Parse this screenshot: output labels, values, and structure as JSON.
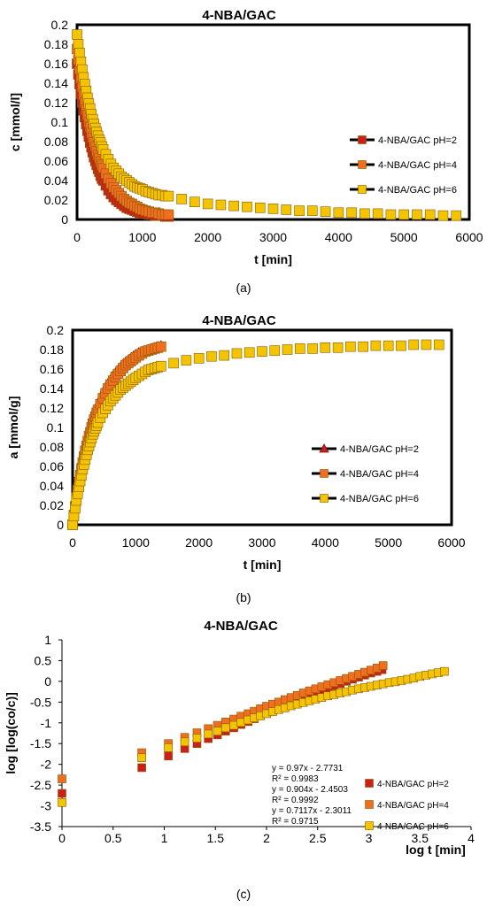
{
  "colors": {
    "pH2": "#cc1f1a",
    "pH4": "#ef6e1f",
    "pH6": "#f5c400",
    "marker_edge": "#8a5a00",
    "frame": "#000000"
  },
  "chart_data": [
    {
      "panel": "(a)",
      "type": "scatter",
      "title": "4-NBA/GAC",
      "xlabel": "t [min]",
      "ylabel": "c [mmol/l]",
      "xlim": [
        0,
        6000
      ],
      "ylim": [
        0,
        0.2
      ],
      "xticks": [
        "0",
        "1000",
        "2000",
        "3000",
        "4000",
        "5000",
        "6000"
      ],
      "yticks": [
        "0",
        "0.02",
        "0.04",
        "0.06",
        "0.08",
        "0.1",
        "0.12",
        "0.14",
        "0.16",
        "0.18",
        "0.2"
      ],
      "legend_position": "right",
      "legend_marker": "square",
      "series": [
        {
          "name": "4-NBA/GAC pH=2",
          "color_key": "pH2",
          "x": [
            0,
            20,
            40,
            60,
            80,
            100,
            120,
            140,
            160,
            180,
            200,
            220,
            240,
            260,
            280,
            300,
            320,
            340,
            360,
            380,
            400,
            440,
            480,
            520,
            560,
            600,
            640,
            680,
            720,
            760,
            800,
            840,
            880,
            920,
            960,
            1000,
            1050,
            1100,
            1150,
            1200,
            1250,
            1300,
            1350,
            1400
          ],
          "y": [
            0.16,
            0.149,
            0.139,
            0.129,
            0.12,
            0.112,
            0.105,
            0.098,
            0.091,
            0.085,
            0.079,
            0.074,
            0.069,
            0.064,
            0.06,
            0.056,
            0.052,
            0.049,
            0.045,
            0.042,
            0.04,
            0.035,
            0.03,
            0.026,
            0.023,
            0.02,
            0.018,
            0.016,
            0.014,
            0.012,
            0.011,
            0.01,
            0.009,
            0.008,
            0.007,
            0.006,
            0.006,
            0.005,
            0.005,
            0.004,
            0.004,
            0.004,
            0.003,
            0.003
          ]
        },
        {
          "name": "4-NBA/GAC pH=4",
          "color_key": "pH4",
          "x": [
            0,
            20,
            40,
            60,
            80,
            100,
            120,
            140,
            160,
            180,
            200,
            220,
            240,
            260,
            280,
            300,
            320,
            340,
            360,
            380,
            400,
            440,
            480,
            520,
            560,
            600,
            640,
            680,
            720,
            760,
            800,
            840,
            880,
            920,
            960,
            1000,
            1050,
            1100,
            1150,
            1200,
            1250,
            1300,
            1350,
            1400
          ],
          "y": [
            0.175,
            0.164,
            0.154,
            0.145,
            0.136,
            0.128,
            0.12,
            0.113,
            0.107,
            0.1,
            0.095,
            0.089,
            0.084,
            0.079,
            0.075,
            0.07,
            0.066,
            0.063,
            0.059,
            0.056,
            0.053,
            0.047,
            0.042,
            0.037,
            0.033,
            0.03,
            0.027,
            0.024,
            0.021,
            0.019,
            0.017,
            0.016,
            0.014,
            0.013,
            0.011,
            0.01,
            0.009,
            0.008,
            0.007,
            0.007,
            0.006,
            0.005,
            0.005,
            0.005
          ]
        },
        {
          "name": "4-NBA/GAC pH=6",
          "color_key": "pH6",
          "x": [
            0,
            20,
            40,
            60,
            80,
            100,
            120,
            140,
            160,
            180,
            200,
            220,
            240,
            260,
            280,
            300,
            320,
            340,
            360,
            380,
            400,
            440,
            480,
            520,
            560,
            600,
            640,
            680,
            720,
            760,
            800,
            840,
            880,
            920,
            960,
            1000,
            1050,
            1100,
            1150,
            1200,
            1250,
            1300,
            1350,
            1400,
            1600,
            1800,
            2000,
            2200,
            2400,
            2600,
            2800,
            3000,
            3200,
            3400,
            3600,
            3800,
            4000,
            4200,
            4400,
            4600,
            4800,
            5000,
            5200,
            5400,
            5600,
            5800
          ],
          "y": [
            0.19,
            0.18,
            0.171,
            0.162,
            0.154,
            0.146,
            0.139,
            0.132,
            0.125,
            0.119,
            0.114,
            0.108,
            0.103,
            0.098,
            0.094,
            0.09,
            0.086,
            0.082,
            0.079,
            0.075,
            0.072,
            0.067,
            0.062,
            0.057,
            0.053,
            0.05,
            0.047,
            0.044,
            0.042,
            0.04,
            0.038,
            0.036,
            0.034,
            0.033,
            0.032,
            0.031,
            0.029,
            0.028,
            0.027,
            0.026,
            0.025,
            0.025,
            0.024,
            0.024,
            0.021,
            0.018,
            0.016,
            0.015,
            0.014,
            0.013,
            0.012,
            0.011,
            0.01,
            0.009,
            0.009,
            0.008,
            0.007,
            0.007,
            0.006,
            0.006,
            0.005,
            0.005,
            0.005,
            0.005,
            0.004,
            0.004
          ]
        }
      ]
    },
    {
      "panel": "(b)",
      "type": "scatter",
      "title": "4-NBA/GAC",
      "xlabel": "t [min]",
      "ylabel": "a [mmol/g]",
      "xlim": [
        0,
        6000
      ],
      "ylim": [
        0,
        0.2
      ],
      "xticks": [
        "0",
        "1000",
        "2000",
        "3000",
        "4000",
        "5000",
        "6000"
      ],
      "yticks": [
        "0",
        "0.02",
        "0.04",
        "0.06",
        "0.08",
        "0.1",
        "0.12",
        "0.14",
        "0.16",
        "0.18",
        "0.2"
      ],
      "legend_position": "right",
      "legend_marker": [
        "triangle",
        "square",
        "square"
      ],
      "series": [
        {
          "name": "4-NBA/GAC pH=2",
          "color_key": "pH2",
          "marker": "triangle",
          "x": [
            0,
            20,
            40,
            60,
            80,
            100,
            120,
            140,
            160,
            180,
            200,
            220,
            240,
            260,
            280,
            300,
            320,
            340,
            360,
            380,
            400,
            440,
            480,
            520,
            560,
            600,
            640,
            680,
            720,
            760,
            800,
            840,
            880,
            920,
            960,
            1000,
            1050,
            1100,
            1150,
            1200,
            1250,
            1300,
            1350,
            1400
          ],
          "y": [
            0,
            0.011,
            0.021,
            0.031,
            0.04,
            0.048,
            0.056,
            0.063,
            0.07,
            0.076,
            0.082,
            0.088,
            0.093,
            0.098,
            0.103,
            0.107,
            0.111,
            0.115,
            0.119,
            0.122,
            0.125,
            0.131,
            0.137,
            0.142,
            0.146,
            0.15,
            0.154,
            0.157,
            0.16,
            0.163,
            0.166,
            0.168,
            0.17,
            0.172,
            0.174,
            0.176,
            0.178,
            0.179,
            0.18,
            0.181,
            0.182,
            0.183,
            0.184,
            0.185
          ]
        },
        {
          "name": "4-NBA/GAC pH=4",
          "color_key": "pH4",
          "marker": "square",
          "x": [
            0,
            20,
            40,
            60,
            80,
            100,
            120,
            140,
            160,
            180,
            200,
            220,
            240,
            260,
            280,
            300,
            320,
            340,
            360,
            380,
            400,
            440,
            480,
            520,
            560,
            600,
            640,
            680,
            720,
            760,
            800,
            840,
            880,
            920,
            960,
            1000,
            1050,
            1100,
            1150,
            1200,
            1250,
            1300,
            1350,
            1400
          ],
          "y": [
            0,
            0.01,
            0.019,
            0.028,
            0.036,
            0.044,
            0.051,
            0.058,
            0.064,
            0.07,
            0.076,
            0.081,
            0.086,
            0.091,
            0.095,
            0.1,
            0.104,
            0.108,
            0.111,
            0.115,
            0.118,
            0.124,
            0.13,
            0.135,
            0.14,
            0.144,
            0.148,
            0.152,
            0.155,
            0.158,
            0.161,
            0.164,
            0.166,
            0.168,
            0.17,
            0.172,
            0.174,
            0.176,
            0.178,
            0.179,
            0.18,
            0.181,
            0.182,
            0.183
          ]
        },
        {
          "name": "4-NBA/GAC pH=6",
          "color_key": "pH6",
          "marker": "square",
          "x": [
            0,
            20,
            40,
            60,
            80,
            100,
            120,
            140,
            160,
            180,
            200,
            220,
            240,
            260,
            280,
            300,
            320,
            340,
            360,
            380,
            400,
            440,
            480,
            520,
            560,
            600,
            640,
            680,
            720,
            760,
            800,
            840,
            880,
            920,
            960,
            1000,
            1050,
            1100,
            1150,
            1200,
            1250,
            1300,
            1350,
            1400,
            1600,
            1800,
            2000,
            2200,
            2400,
            2600,
            2800,
            3000,
            3200,
            3400,
            3600,
            3800,
            4000,
            4200,
            4400,
            4600,
            4800,
            5000,
            5200,
            5400,
            5600,
            5800
          ],
          "y": [
            0,
            0.009,
            0.017,
            0.025,
            0.032,
            0.039,
            0.045,
            0.051,
            0.057,
            0.062,
            0.067,
            0.072,
            0.077,
            0.081,
            0.085,
            0.089,
            0.093,
            0.096,
            0.099,
            0.102,
            0.105,
            0.11,
            0.115,
            0.119,
            0.123,
            0.127,
            0.13,
            0.133,
            0.136,
            0.139,
            0.141,
            0.143,
            0.145,
            0.147,
            0.149,
            0.151,
            0.153,
            0.155,
            0.157,
            0.159,
            0.16,
            0.161,
            0.162,
            0.163,
            0.166,
            0.169,
            0.171,
            0.173,
            0.174,
            0.176,
            0.177,
            0.178,
            0.179,
            0.18,
            0.181,
            0.181,
            0.182,
            0.182,
            0.183,
            0.183,
            0.184,
            0.184,
            0.184,
            0.185,
            0.185,
            0.185
          ]
        }
      ]
    },
    {
      "panel": "(c)",
      "type": "scatter",
      "title": "4-NBA/GAC",
      "xlabel": "log t [min]",
      "ylabel": "log [log(co/c)]",
      "xlim": [
        0,
        4
      ],
      "ylim": [
        -3.5,
        1
      ],
      "xticks": [
        "0",
        "0.5",
        "1",
        "1.5",
        "2",
        "2.5",
        "3",
        "3.5",
        "4"
      ],
      "yticks": [
        "-3.5",
        "-3",
        "-2.5",
        "-2",
        "-1.5",
        "-1",
        "-0.5",
        "0",
        "0.5",
        "1"
      ],
      "legend_position": "bottom-right",
      "legend_marker": "square",
      "annotations": [
        {
          "line1": "y = 0.97x - 2.7731",
          "line2": "R² = 0.9983"
        },
        {
          "line1": "y = 0.904x - 2.4503",
          "line2": "R² = 0.9992"
        },
        {
          "line1": "y = 0.7117x - 2.3011",
          "line2": "R² = 0.9715"
        }
      ],
      "series": [
        {
          "name": "4-NBA/GAC pH=2",
          "color_key": "pH2",
          "x": [
            0,
            0.78,
            1.04,
            1.2,
            1.32,
            1.43,
            1.52,
            1.6,
            1.68,
            1.75,
            1.82,
            1.88,
            1.94,
            2.0,
            2.06,
            2.12,
            2.18,
            2.24,
            2.3,
            2.36,
            2.42,
            2.48,
            2.54,
            2.6,
            2.66,
            2.72,
            2.78,
            2.84,
            2.9,
            2.96,
            3.02,
            3.08,
            3.13
          ],
          "y": [
            -2.7,
            -2.08,
            -1.8,
            -1.62,
            -1.5,
            -1.38,
            -1.29,
            -1.2,
            -1.12,
            -1.04,
            -0.97,
            -0.9,
            -0.83,
            -0.77,
            -0.71,
            -0.65,
            -0.59,
            -0.53,
            -0.47,
            -0.41,
            -0.35,
            -0.29,
            -0.23,
            -0.17,
            -0.11,
            -0.06,
            0.0,
            0.05,
            0.1,
            0.15,
            0.2,
            0.24,
            0.28
          ]
        },
        {
          "name": "4-NBA/GAC pH=4",
          "color_key": "pH4",
          "x": [
            0,
            0.78,
            1.04,
            1.2,
            1.32,
            1.43,
            1.52,
            1.6,
            1.68,
            1.75,
            1.82,
            1.88,
            1.94,
            2.0,
            2.06,
            2.12,
            2.18,
            2.24,
            2.3,
            2.36,
            2.42,
            2.48,
            2.54,
            2.6,
            2.66,
            2.72,
            2.78,
            2.84,
            2.9,
            2.96,
            3.02,
            3.08,
            3.14
          ],
          "y": [
            -2.35,
            -1.72,
            -1.5,
            -1.35,
            -1.24,
            -1.14,
            -1.06,
            -0.98,
            -0.91,
            -0.84,
            -0.78,
            -0.72,
            -0.66,
            -0.6,
            -0.55,
            -0.5,
            -0.44,
            -0.39,
            -0.34,
            -0.28,
            -0.23,
            -0.18,
            -0.13,
            -0.08,
            -0.03,
            0.02,
            0.07,
            0.12,
            0.17,
            0.22,
            0.27,
            0.32,
            0.38
          ]
        },
        {
          "name": "4-NBA/GAC pH=6",
          "color_key": "pH6",
          "x": [
            0,
            0.78,
            1.04,
            1.2,
            1.32,
            1.43,
            1.52,
            1.6,
            1.68,
            1.75,
            1.82,
            1.88,
            1.94,
            2.0,
            2.06,
            2.12,
            2.18,
            2.24,
            2.3,
            2.36,
            2.42,
            2.48,
            2.54,
            2.6,
            2.66,
            2.72,
            2.78,
            2.84,
            2.9,
            2.96,
            3.02,
            3.08,
            3.14,
            3.2,
            3.26,
            3.32,
            3.38,
            3.44,
            3.5,
            3.56,
            3.62,
            3.68,
            3.74
          ],
          "y": [
            -2.92,
            -1.84,
            -1.6,
            -1.46,
            -1.37,
            -1.27,
            -1.2,
            -1.12,
            -1.06,
            -0.99,
            -0.93,
            -0.88,
            -0.83,
            -0.78,
            -0.73,
            -0.68,
            -0.64,
            -0.59,
            -0.55,
            -0.51,
            -0.47,
            -0.43,
            -0.39,
            -0.35,
            -0.32,
            -0.28,
            -0.25,
            -0.21,
            -0.18,
            -0.15,
            -0.12,
            -0.09,
            -0.06,
            -0.03,
            -0.01,
            0.02,
            0.05,
            0.08,
            0.12,
            0.15,
            0.18,
            0.21,
            0.24
          ]
        }
      ]
    }
  ]
}
